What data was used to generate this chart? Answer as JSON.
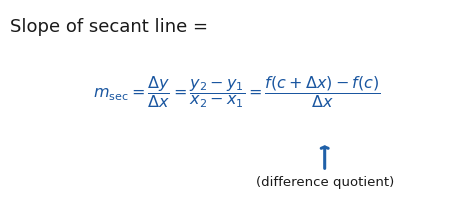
{
  "title": "Slope of secant line =",
  "title_fontsize": 13,
  "title_color": "#1a1a1a",
  "formula_color": "#1a56a0",
  "text_color": "#1a1a1a",
  "bg_color": "#ffffff",
  "arrow_color": "#2060a8",
  "annotation_text": "(difference quotient)",
  "formula_main": "$m_{\\mathrm{sec}} = \\dfrac{\\Delta y}{\\Delta x} = \\dfrac{y_2 - y_1}{x_2 - x_1} = \\dfrac{f(c + \\Delta x) - f(c)}{\\Delta x}$",
  "fig_width": 4.74,
  "fig_height": 2.05,
  "dpi": 100
}
